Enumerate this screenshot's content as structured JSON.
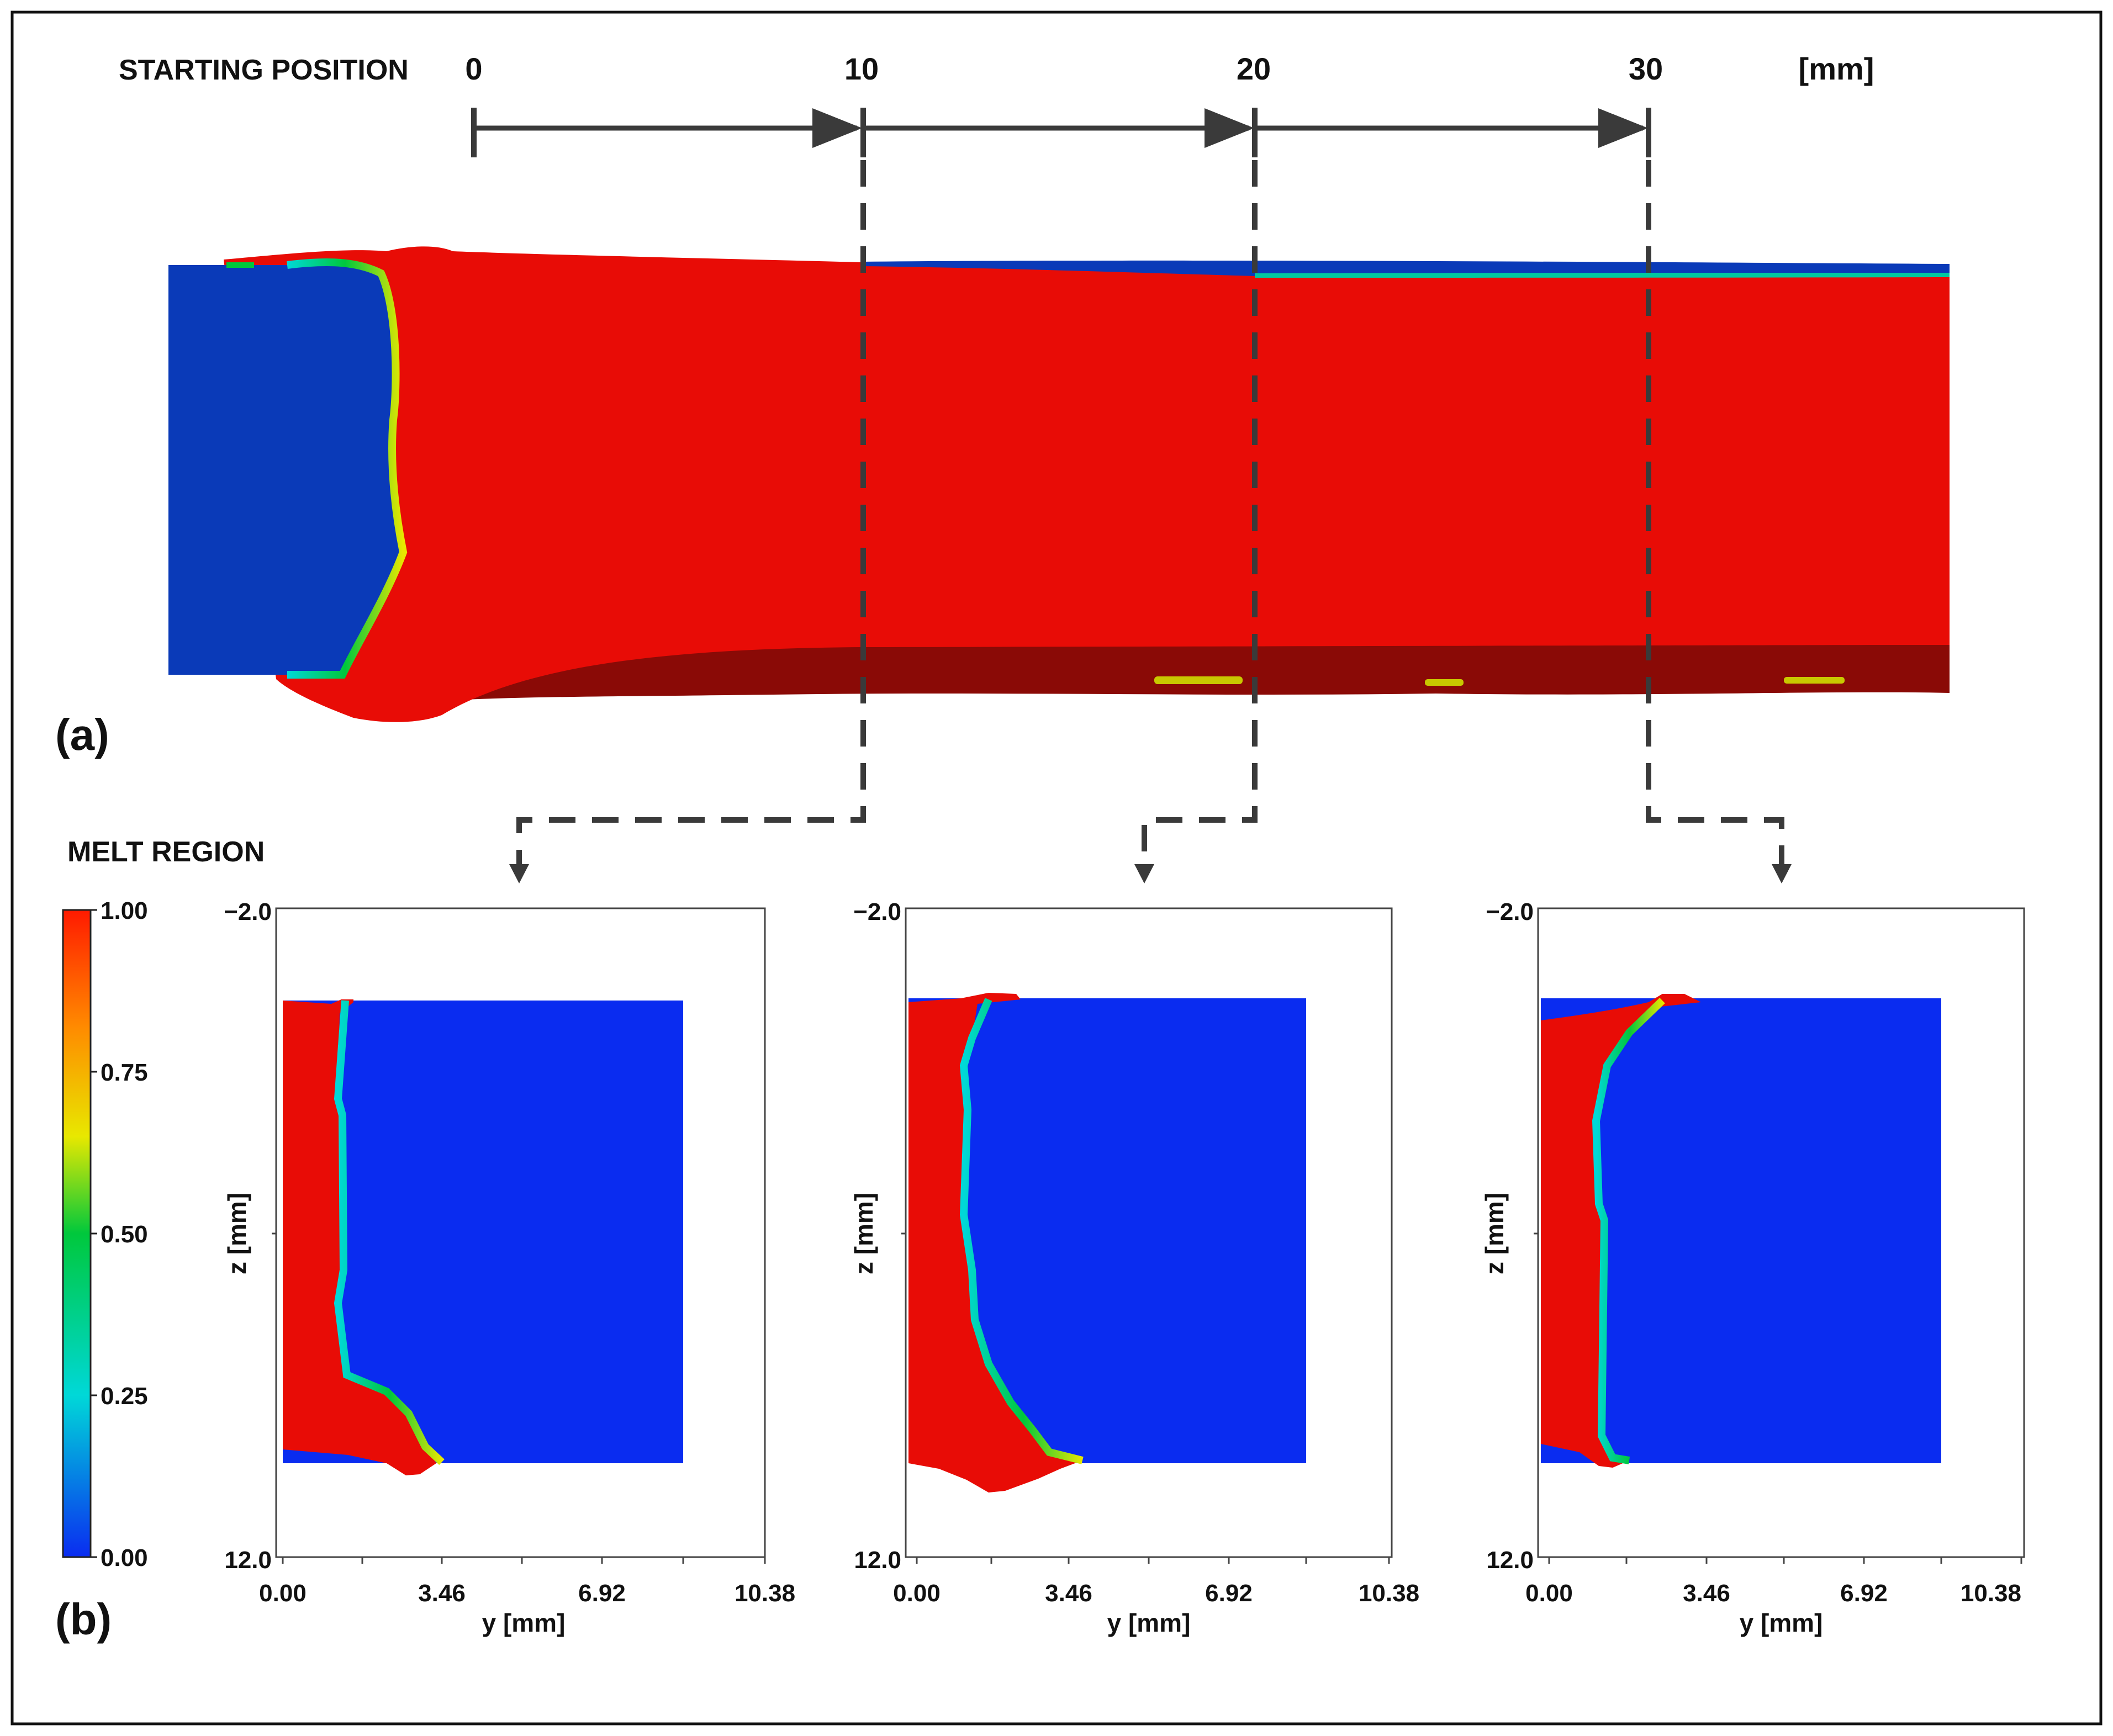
{
  "labels": {
    "starting_position": "STARTING POSITION",
    "unit": "[mm]",
    "scale_ticks": [
      "0",
      "10",
      "20",
      "30"
    ],
    "panel_a": "(a)",
    "panel_b": "(b)",
    "melt_region": "MELT REGION"
  },
  "colorbar": {
    "ticks": [
      "1.00",
      "0.75",
      "0.50",
      "0.25",
      "0.00"
    ],
    "colors": [
      "#ff1a00",
      "#ff8a00",
      "#e8e800",
      "#00c83c",
      "#00d8d8",
      "#0a2cf0"
    ]
  },
  "cross_sections": [
    {
      "z_top": "−2.0",
      "z_bottom": "12.0",
      "ylabel": "z [mm]",
      "xticks": [
        "0.00",
        "3.46",
        "6.92",
        "10.38"
      ],
      "xlabel": "y [mm]"
    },
    {
      "z_top": "−2.0",
      "z_bottom": "12.0",
      "ylabel": "z [mm]",
      "xticks": [
        "0.00",
        "3.46",
        "6.92",
        "10.38"
      ],
      "xlabel": "y [mm]"
    },
    {
      "z_top": "−2.0",
      "z_bottom": "12.0",
      "ylabel": "z [mm]",
      "xticks": [
        "0.00",
        "3.46",
        "6.92",
        "10.38"
      ],
      "xlabel": "y [mm]"
    }
  ],
  "colors": {
    "melt_red": "#e80c06",
    "solid_blue": "#0a2cf0",
    "bead_blue": "#0a3ab8",
    "dark_red": "#8a0a06",
    "arrow_gray": "#3a3a3a"
  }
}
